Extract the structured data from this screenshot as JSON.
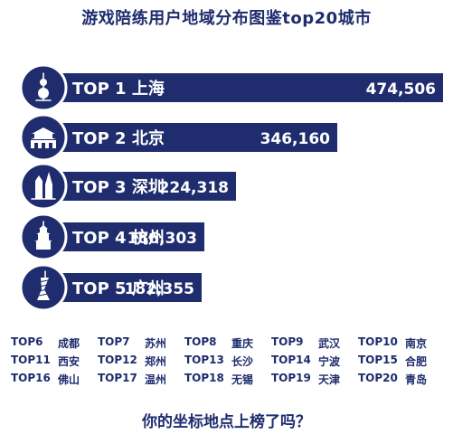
{
  "title": "游戏陪练用户地域分布图鉴top20城市",
  "question": "你的坐标地点上榜了吗？",
  "colors": {
    "bar": "#1f2d6e",
    "text": "#1f2d6e",
    "label": "#ffffff"
  },
  "chart_data": {
    "type": "bar",
    "orientation": "horizontal",
    "title": "游戏陪练用户地域分布图鉴top20城市",
    "categories": [
      "TOP 1 上海",
      "TOP 2 北京",
      "TOP 3 深圳",
      "TOP 4 杭州",
      "TOP 5 广州"
    ],
    "values": [
      474506,
      346160,
      224318,
      186303,
      182355
    ],
    "value_labels": [
      "474,506",
      "346,160",
      "224,318",
      "186,303",
      "182,355"
    ],
    "icons": [
      "oriental-pearl-tower-icon",
      "tiananmen-icon",
      "shenzhen-towers-icon",
      "leifeng-pagoda-icon",
      "canton-tower-icon"
    ]
  },
  "other_ranks": [
    {
      "rank": "TOP6",
      "city": "成都"
    },
    {
      "rank": "TOP7",
      "city": "苏州"
    },
    {
      "rank": "TOP8",
      "city": "重庆"
    },
    {
      "rank": "TOP9",
      "city": "武汉"
    },
    {
      "rank": "TOP10",
      "city": "南京"
    },
    {
      "rank": "TOP11",
      "city": "西安"
    },
    {
      "rank": "TOP12",
      "city": "郑州"
    },
    {
      "rank": "TOP13",
      "city": "长沙"
    },
    {
      "rank": "TOP14",
      "city": "宁波"
    },
    {
      "rank": "TOP15",
      "city": "合肥"
    },
    {
      "rank": "TOP16",
      "city": "佛山"
    },
    {
      "rank": "TOP17",
      "city": "温州"
    },
    {
      "rank": "TOP18",
      "city": "无锡"
    },
    {
      "rank": "TOP19",
      "city": "天津"
    },
    {
      "rank": "TOP20",
      "city": "青岛"
    }
  ]
}
